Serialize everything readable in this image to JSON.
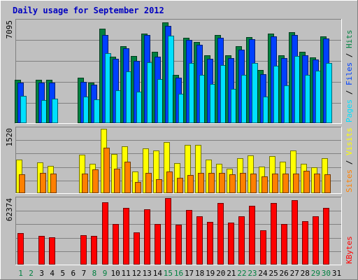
{
  "chart_data": {
    "type": "bar",
    "title": "Daily usage for September 2012",
    "categories": [
      "1",
      "2",
      "3",
      "4",
      "5",
      "6",
      "7",
      "8",
      "9",
      "10",
      "11",
      "12",
      "13",
      "14",
      "15",
      "16",
      "17",
      "18",
      "19",
      "20",
      "21",
      "22",
      "23",
      "24",
      "25",
      "26",
      "27",
      "28",
      "29",
      "30",
      "31"
    ],
    "weekend_days": [
      "1",
      "2",
      "8",
      "9",
      "15",
      "16",
      "22",
      "23",
      "29",
      "30"
    ],
    "panels": [
      {
        "id": "hits-files-pages",
        "ymax_label": "7095",
        "ylim": [
          0,
          7095
        ],
        "grid": true,
        "side_legend": [
          {
            "text": "Pages",
            "color": "#00e0ff"
          },
          {
            "text": " / ",
            "color": "#000000"
          },
          {
            "text": "Files",
            "color": "#0040ff"
          },
          {
            "text": " / ",
            "color": "#000000"
          },
          {
            "text": "Hits",
            "color": "#008040"
          }
        ],
        "series": [
          {
            "name": "Hits",
            "color": "#008040",
            "values": [
              2980,
              0,
              2980,
              2980,
              0,
              0,
              3140,
              2780,
              6500,
              4580,
              5300,
              4620,
              6190,
              4900,
              6950,
              3320,
              5900,
              5590,
              4680,
              6080,
              4680,
              5290,
              5940,
              3660,
              6190,
              4660,
              6290,
              4900,
              4540,
              5990,
              0
            ]
          },
          {
            "name": "Files",
            "color": "#0040ff",
            "values": [
              2800,
              0,
              2800,
              2800,
              0,
              0,
              2840,
              2650,
              6080,
              4440,
              5160,
              4300,
              6060,
              4600,
              6710,
              3140,
              5740,
              5420,
              4420,
              5870,
              4490,
              5080,
              5800,
              3360,
              5970,
              4470,
              6070,
              4670,
              4400,
              5850,
              0
            ]
          },
          {
            "name": "Pages",
            "color": "#00e0ff",
            "values": [
              1880,
              0,
              1600,
              1700,
              0,
              0,
              1850,
              1650,
              4850,
              2250,
              3550,
              2150,
              4220,
              3050,
              6010,
              2020,
              4130,
              3330,
              2720,
              3990,
              2380,
              3330,
              4140,
              1850,
              3950,
              2620,
              4650,
              3350,
              3640,
              4160,
              0
            ]
          }
        ]
      },
      {
        "id": "visits-sites",
        "ymax_label": "1520",
        "ylim": [
          0,
          1520
        ],
        "grid": true,
        "side_legend": [
          {
            "text": "Sites",
            "color": "#ff8000"
          },
          {
            "text": " / ",
            "color": "#000000"
          },
          {
            "text": "Visits",
            "color": "#ffff00"
          }
        ],
        "series": [
          {
            "name": "Visits",
            "color": "#ffff00",
            "values": [
              780,
              0,
              720,
              640,
              0,
              0,
              900,
              680,
              1500,
              910,
              1100,
              500,
              1040,
              1000,
              1200,
              700,
              1120,
              1120,
              780,
              680,
              580,
              820,
              890,
              620,
              870,
              730,
              1000,
              690,
              610,
              820,
              0
            ]
          },
          {
            "name": "Sites",
            "color": "#ff8000",
            "values": [
              440,
              0,
              480,
              450,
              0,
              0,
              450,
              550,
              1070,
              580,
              740,
              260,
              470,
              330,
              500,
              360,
              430,
              480,
              470,
              480,
              440,
              480,
              460,
              390,
              460,
              450,
              460,
              520,
              460,
              440,
              0
            ]
          }
        ]
      },
      {
        "id": "kbytes",
        "ymax_label": "62374",
        "ylim": [
          0,
          62374
        ],
        "grid": true,
        "side_legend": [
          {
            "text": "KBytes",
            "color": "#ff0000"
          }
        ],
        "series": [
          {
            "name": "KBytes",
            "color": "#ff0000",
            "values": [
              29500,
              0,
              26900,
              25500,
              0,
              0,
              27400,
              26800,
              58600,
              37800,
              53100,
              30500,
              52100,
              38100,
              62300,
              37200,
              51500,
              45000,
              40200,
              57500,
              39700,
              45000,
              55000,
              32300,
              57900,
              37800,
              60500,
              41000,
              45000,
              52900,
              0
            ]
          }
        ]
      }
    ]
  }
}
